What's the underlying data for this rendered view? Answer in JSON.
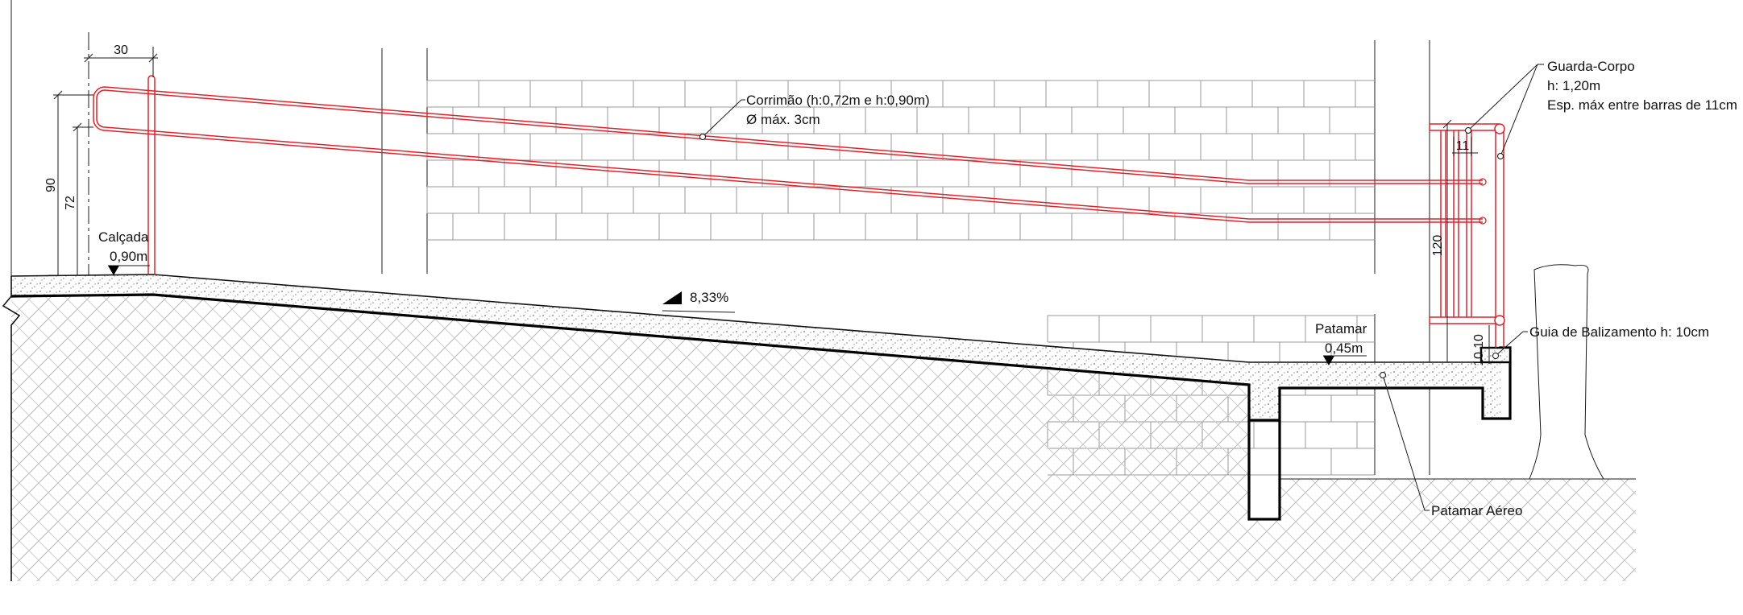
{
  "colors": {
    "rail": "#e4212b",
    "line": "#111111",
    "brick": "#9a9a9a",
    "hatch": "#b5b5b5",
    "concrete": "#dcdcdc"
  },
  "labels": {
    "handrail_title": "Corrimão (h:0,72m e h:0,90m)",
    "handrail_diameter": "Ø máx. 3cm",
    "guard_title": "Guarda-Corpo",
    "guard_height": "h: 1,20m",
    "guard_spacing": "Esp. máx entre barras de 11cm",
    "sidewalk_name": "Calçada",
    "sidewalk_level": "0,90m",
    "slope": "8,33%",
    "landing_name": "Patamar",
    "landing_level": "0,45m",
    "curb_guide": "Guia de Balizamento h: 10cm",
    "aerial_landing": "Patamar Aéreo"
  },
  "dimensions": {
    "handrail_extension": "30",
    "upper_rail_height": "90",
    "lower_rail_height": "72",
    "guard_height": "120",
    "bar_spacing": "11",
    "curb_a": "10",
    "curb_b": "10"
  }
}
